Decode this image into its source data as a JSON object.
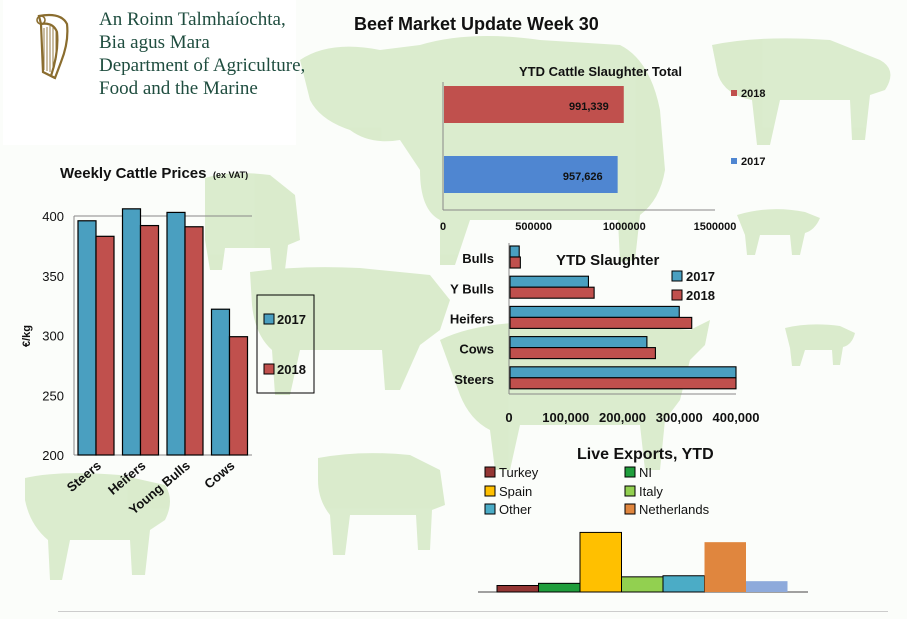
{
  "page": {
    "title": "Beef Market Update Week 30",
    "logo_lines": [
      "An Roinn Talmhaíochta,",
      "Bia agus Mara",
      "Department of Agriculture,",
      "Food and the Marine"
    ]
  },
  "colors": {
    "c2017_blue": "#4a9fc0",
    "c2018_red": "#c0504d",
    "ytd_2018": "#c0504d",
    "ytd_2017": "#4f86d1",
    "turkey": "#943634",
    "ni": "#1f9e3c",
    "spain": "#ffc000",
    "italy": "#92d050",
    "other": "#4bacc6",
    "netherlands": "#e0863e",
    "extra": "#8eaadb"
  },
  "chart_data": [
    {
      "id": "weekly_prices",
      "type": "bar",
      "title": "Weekly Cattle Prices",
      "subtitle": "(ex VAT)",
      "xlabel": "",
      "ylabel": "€/kg",
      "ylim": [
        200,
        400
      ],
      "yticks": [
        200,
        250,
        300,
        350,
        400
      ],
      "categories": [
        "Steers",
        "Heifers",
        "Young Bulls",
        "Cows"
      ],
      "series": [
        {
          "name": "2017",
          "values": [
            396,
            406,
            403,
            322
          ]
        },
        {
          "name": "2018",
          "values": [
            383,
            392,
            391,
            299
          ]
        }
      ],
      "legend": "right",
      "grid": false
    },
    {
      "id": "ytd_total",
      "type": "bar",
      "orientation": "horizontal",
      "title": "YTD Cattle Slaughter Total",
      "xlim": [
        0,
        1500000
      ],
      "xticks": [
        "0",
        "500000",
        "1000000",
        "1500000"
      ],
      "series": [
        {
          "name": "2018",
          "value": 991339,
          "label": "991,339"
        },
        {
          "name": "2017",
          "value": 957626,
          "label": "957,626"
        }
      ],
      "legend": "right"
    },
    {
      "id": "ytd_slaughter",
      "type": "bar",
      "orientation": "horizontal",
      "title": "YTD Slaughter",
      "xlim": [
        0,
        400000
      ],
      "xticks": [
        "0",
        "100,000",
        "200,000",
        "300,000",
        "400,000"
      ],
      "categories": [
        "Bulls",
        "Y Bulls",
        "Heifers",
        "Cows",
        "Steers"
      ],
      "series": [
        {
          "name": "2017",
          "values": [
            18000,
            140000,
            300000,
            243000,
            400000
          ]
        },
        {
          "name": "2018",
          "values": [
            20000,
            150000,
            322000,
            258000,
            400000
          ]
        }
      ],
      "legend": "top-right"
    },
    {
      "id": "live_exports",
      "type": "bar",
      "title": "Live Exports, YTD",
      "categories": [
        "Turkey",
        "NI",
        "Spain",
        "Italy",
        "Other",
        "Netherlands",
        ""
      ],
      "values": [
        6,
        8,
        55,
        14,
        15,
        46,
        10
      ],
      "ylim": [
        0,
        60
      ],
      "legend": "top"
    }
  ]
}
